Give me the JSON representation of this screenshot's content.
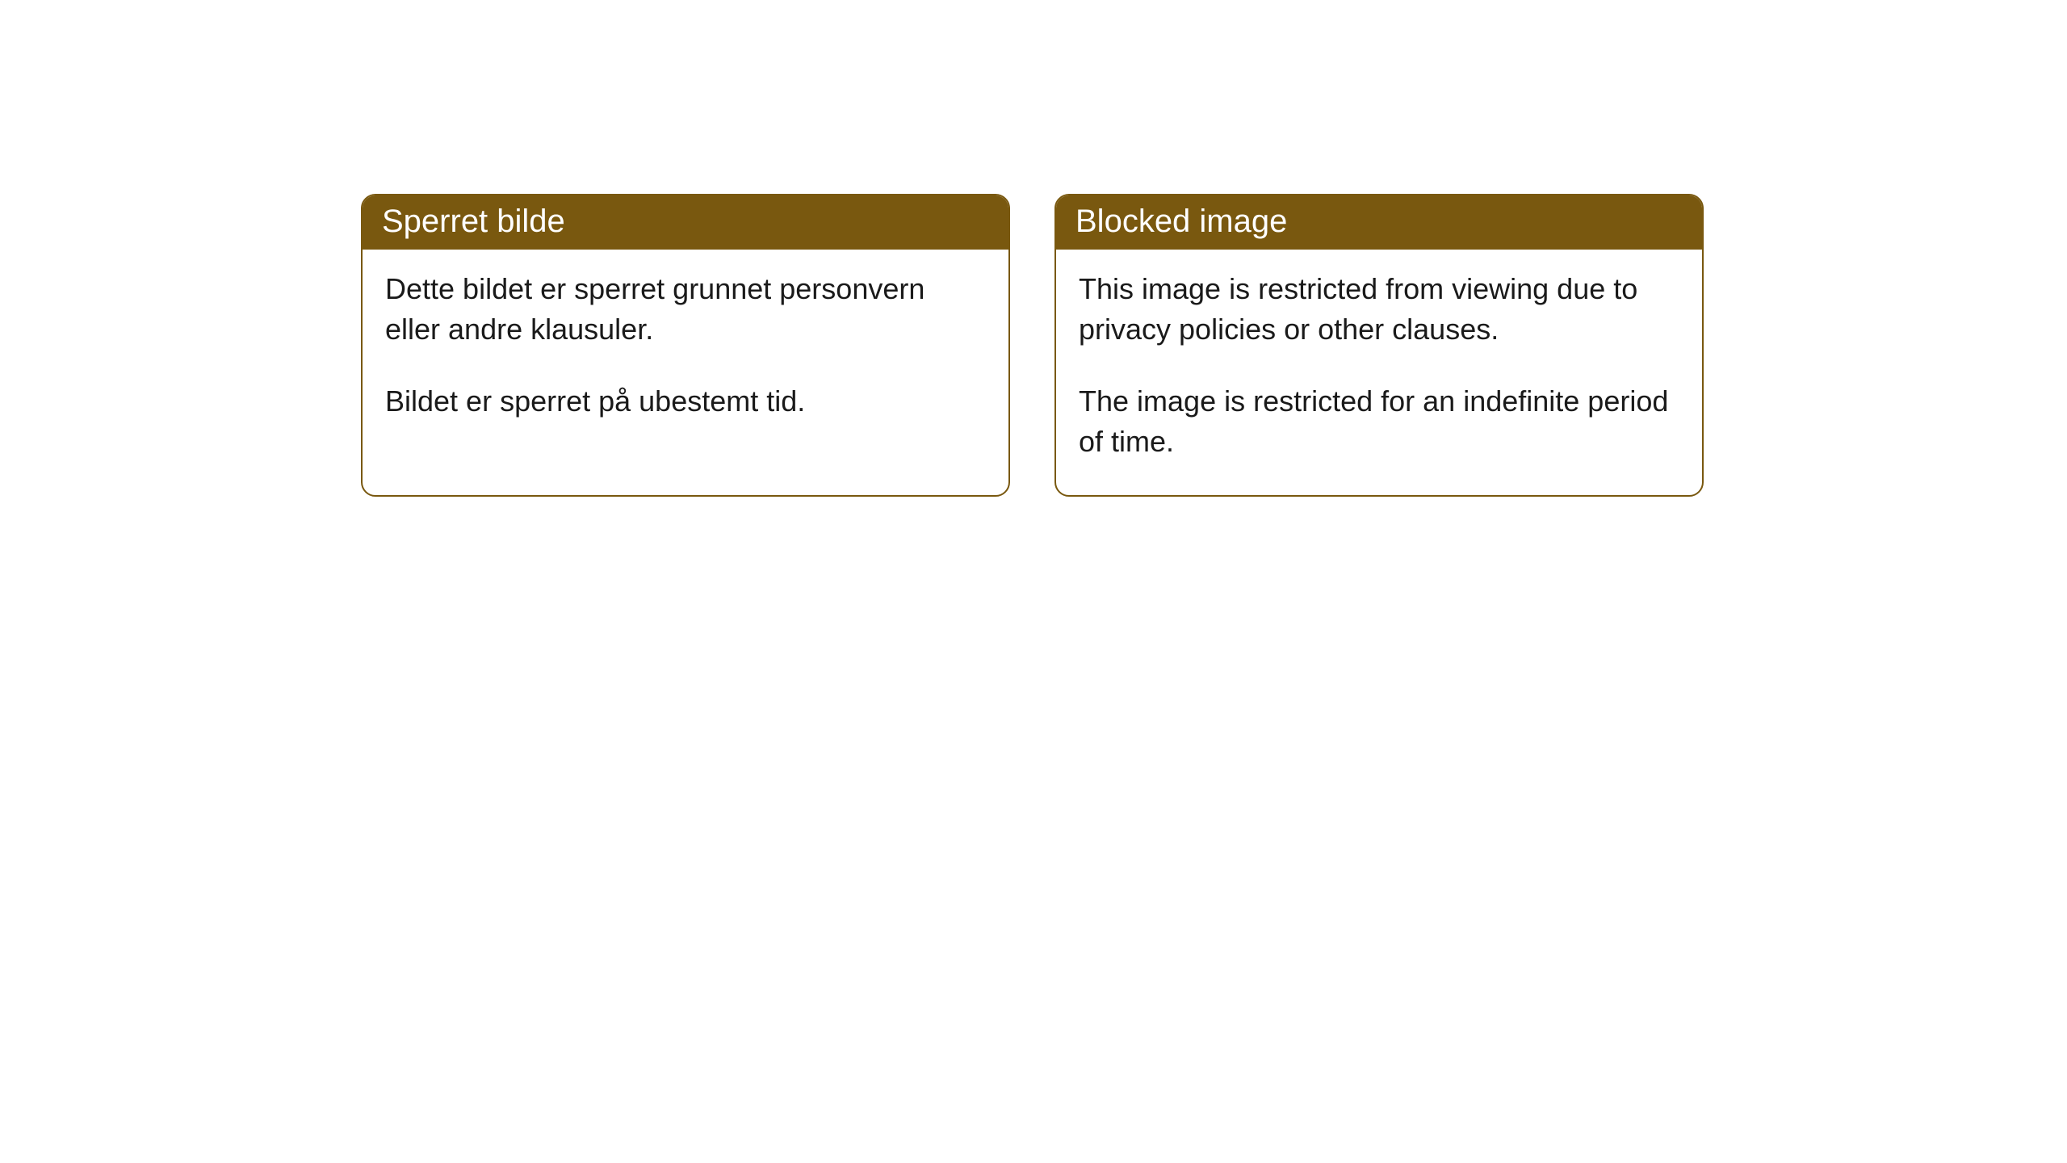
{
  "cards": [
    {
      "title": "Sperret bilde",
      "paragraph1": "Dette bildet er sperret grunnet personvern eller andre klausuler.",
      "paragraph2": "Bildet er sperret på ubestemt tid."
    },
    {
      "title": "Blocked image",
      "paragraph1": "This image is restricted from viewing due to privacy policies or other clauses.",
      "paragraph2": "The image is restricted for an indefinite period of time."
    }
  ],
  "style": {
    "header_bg": "#79580f",
    "header_text_color": "#ffffff",
    "border_color": "#79580f",
    "body_bg": "#ffffff",
    "text_color": "#1a1a1a",
    "border_radius": 18,
    "title_fontsize": 40,
    "body_fontsize": 36
  }
}
